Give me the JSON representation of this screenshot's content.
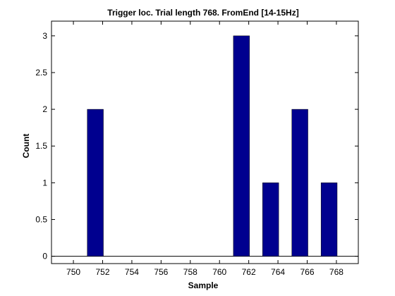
{
  "chart_data": {
    "type": "bar",
    "title": "Trigger loc. Trial length  768. FromEnd [14-15Hz]",
    "xlabel": "Sample",
    "ylabel": "Count",
    "xlim": [
      748.5,
      769.5
    ],
    "ylim": [
      -0.1,
      3.2
    ],
    "bar_width": 1.1,
    "x_ticks": [
      750,
      752,
      754,
      756,
      758,
      760,
      762,
      764,
      766,
      768
    ],
    "y_ticks": [
      0,
      0.5,
      1,
      1.5,
      2,
      2.5,
      3
    ],
    "y_tick_labels": [
      "0",
      "0.5",
      "1",
      "1.5",
      "2",
      "2.5",
      "3"
    ],
    "grid": false,
    "bar_color": "#00008F",
    "bars": [
      {
        "x": 751.5,
        "value": 2
      },
      {
        "x": 761.5,
        "value": 3
      },
      {
        "x": 763.5,
        "value": 1
      },
      {
        "x": 765.5,
        "value": 2
      },
      {
        "x": 767.5,
        "value": 1
      }
    ]
  }
}
